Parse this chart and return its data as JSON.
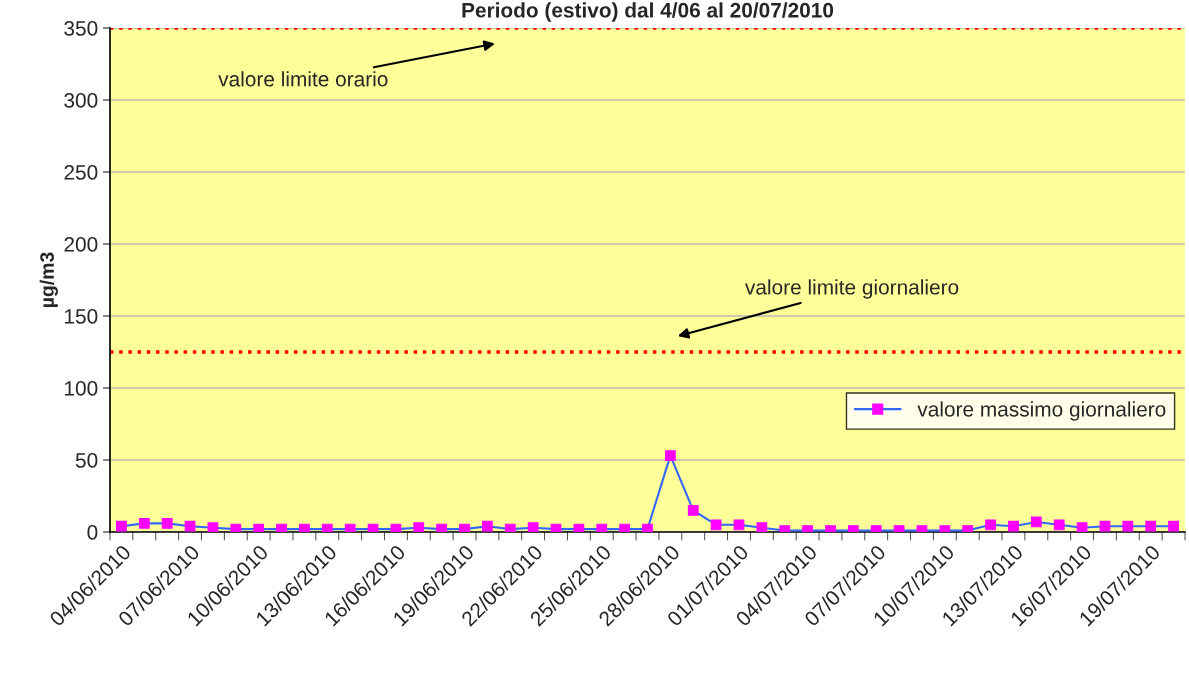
{
  "chart_data": {
    "type": "line",
    "title": "Periodo (estivo) dal 4/06 al 20/07/2010",
    "ylabel": "µg/m3",
    "categories": [
      "04/06/2010",
      null,
      null,
      "07/06/2010",
      null,
      null,
      "10/06/2010",
      null,
      null,
      "13/06/2010",
      null,
      null,
      "16/06/2010",
      null,
      null,
      "19/06/2010",
      null,
      null,
      "22/06/2010",
      null,
      null,
      "25/06/2010",
      null,
      null,
      "28/06/2010",
      null,
      null,
      "01/07/2010",
      null,
      null,
      "04/07/2010",
      null,
      null,
      "07/07/2010",
      null,
      null,
      "10/07/2010",
      null,
      null,
      "13/07/2010",
      null,
      null,
      "16/07/2010",
      null,
      null,
      "19/07/2010",
      null
    ],
    "series": [
      {
        "name": "valore massimo giornaliero",
        "color": "#3366ff",
        "values": [
          4,
          6,
          6,
          4,
          3,
          2,
          2,
          2,
          2,
          2,
          2,
          2,
          2,
          3,
          2,
          2,
          4,
          2,
          3,
          2,
          2,
          2,
          2,
          2,
          53,
          15,
          5,
          5,
          3,
          1,
          1,
          1,
          1,
          1,
          1,
          1,
          1,
          1,
          5,
          4,
          7,
          5,
          3,
          4,
          4,
          4,
          4
        ]
      }
    ],
    "ylim": [
      0,
      350
    ],
    "yticks": [
      0,
      50,
      100,
      150,
      200,
      250,
      300,
      350
    ],
    "grid": "y",
    "legend": "right",
    "marker": "square",
    "ref_lines": [
      {
        "axis": "y",
        "value": 350,
        "label": "valore limite orario",
        "color": "#ff0000",
        "line_style": "dotted"
      },
      {
        "axis": "y",
        "value": 125,
        "label": "valore limite giornaliero",
        "color": "#ff0000",
        "line_style": "dotted"
      }
    ]
  }
}
